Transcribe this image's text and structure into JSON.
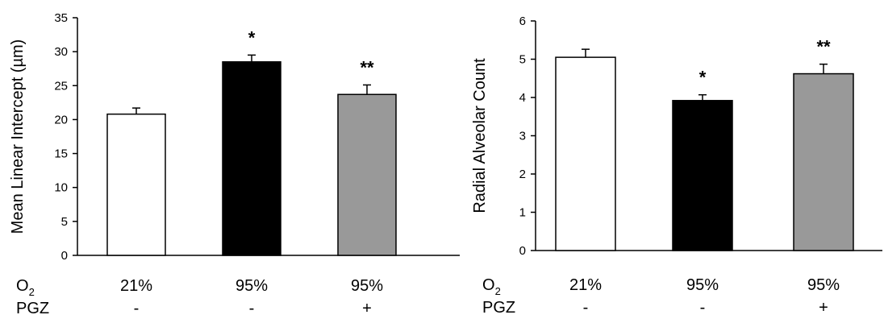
{
  "chart_data": [
    {
      "type": "bar",
      "title": "",
      "xlabel": "",
      "ylabel": "Mean Linear Intercept (µm)",
      "ylim": [
        0,
        35
      ],
      "yticks": [
        "0",
        "5",
        "10",
        "15",
        "20",
        "25",
        "30",
        "35"
      ],
      "grid": false,
      "categories": [
        "21% / -",
        "95% / -",
        "95% / +"
      ],
      "values": [
        20.8,
        28.5,
        23.7
      ],
      "errors": [
        0.9,
        1.0,
        1.4
      ],
      "annotations": [
        "",
        "*",
        "**"
      ],
      "bar_colors": [
        "#ffffff",
        "#000000",
        "#999999"
      ],
      "conditions": {
        "row1_label": "O",
        "row1_sub": "2",
        "row1_values": [
          "21%",
          "95%",
          "95%"
        ],
        "row2_label": "PGZ",
        "row2_values": [
          "-",
          "-",
          "+"
        ]
      }
    },
    {
      "type": "bar",
      "title": "",
      "xlabel": "",
      "ylabel": "Radial Alveolar Count",
      "ylim": [
        0,
        6
      ],
      "yticks": [
        "0",
        "1",
        "2",
        "3",
        "4",
        "5",
        "6"
      ],
      "grid": false,
      "categories": [
        "21% / -",
        "95% / -",
        "95% / +"
      ],
      "values": [
        5.05,
        3.92,
        4.62
      ],
      "errors": [
        0.21,
        0.15,
        0.25
      ],
      "annotations": [
        "",
        "*",
        "**"
      ],
      "bar_colors": [
        "#ffffff",
        "#000000",
        "#999999"
      ],
      "conditions": {
        "row1_label": "O",
        "row1_sub": "2",
        "row1_values": [
          "21%",
          "95%",
          "95%"
        ],
        "row2_label": "PGZ",
        "row2_values": [
          "-",
          "-",
          "+"
        ]
      }
    }
  ]
}
